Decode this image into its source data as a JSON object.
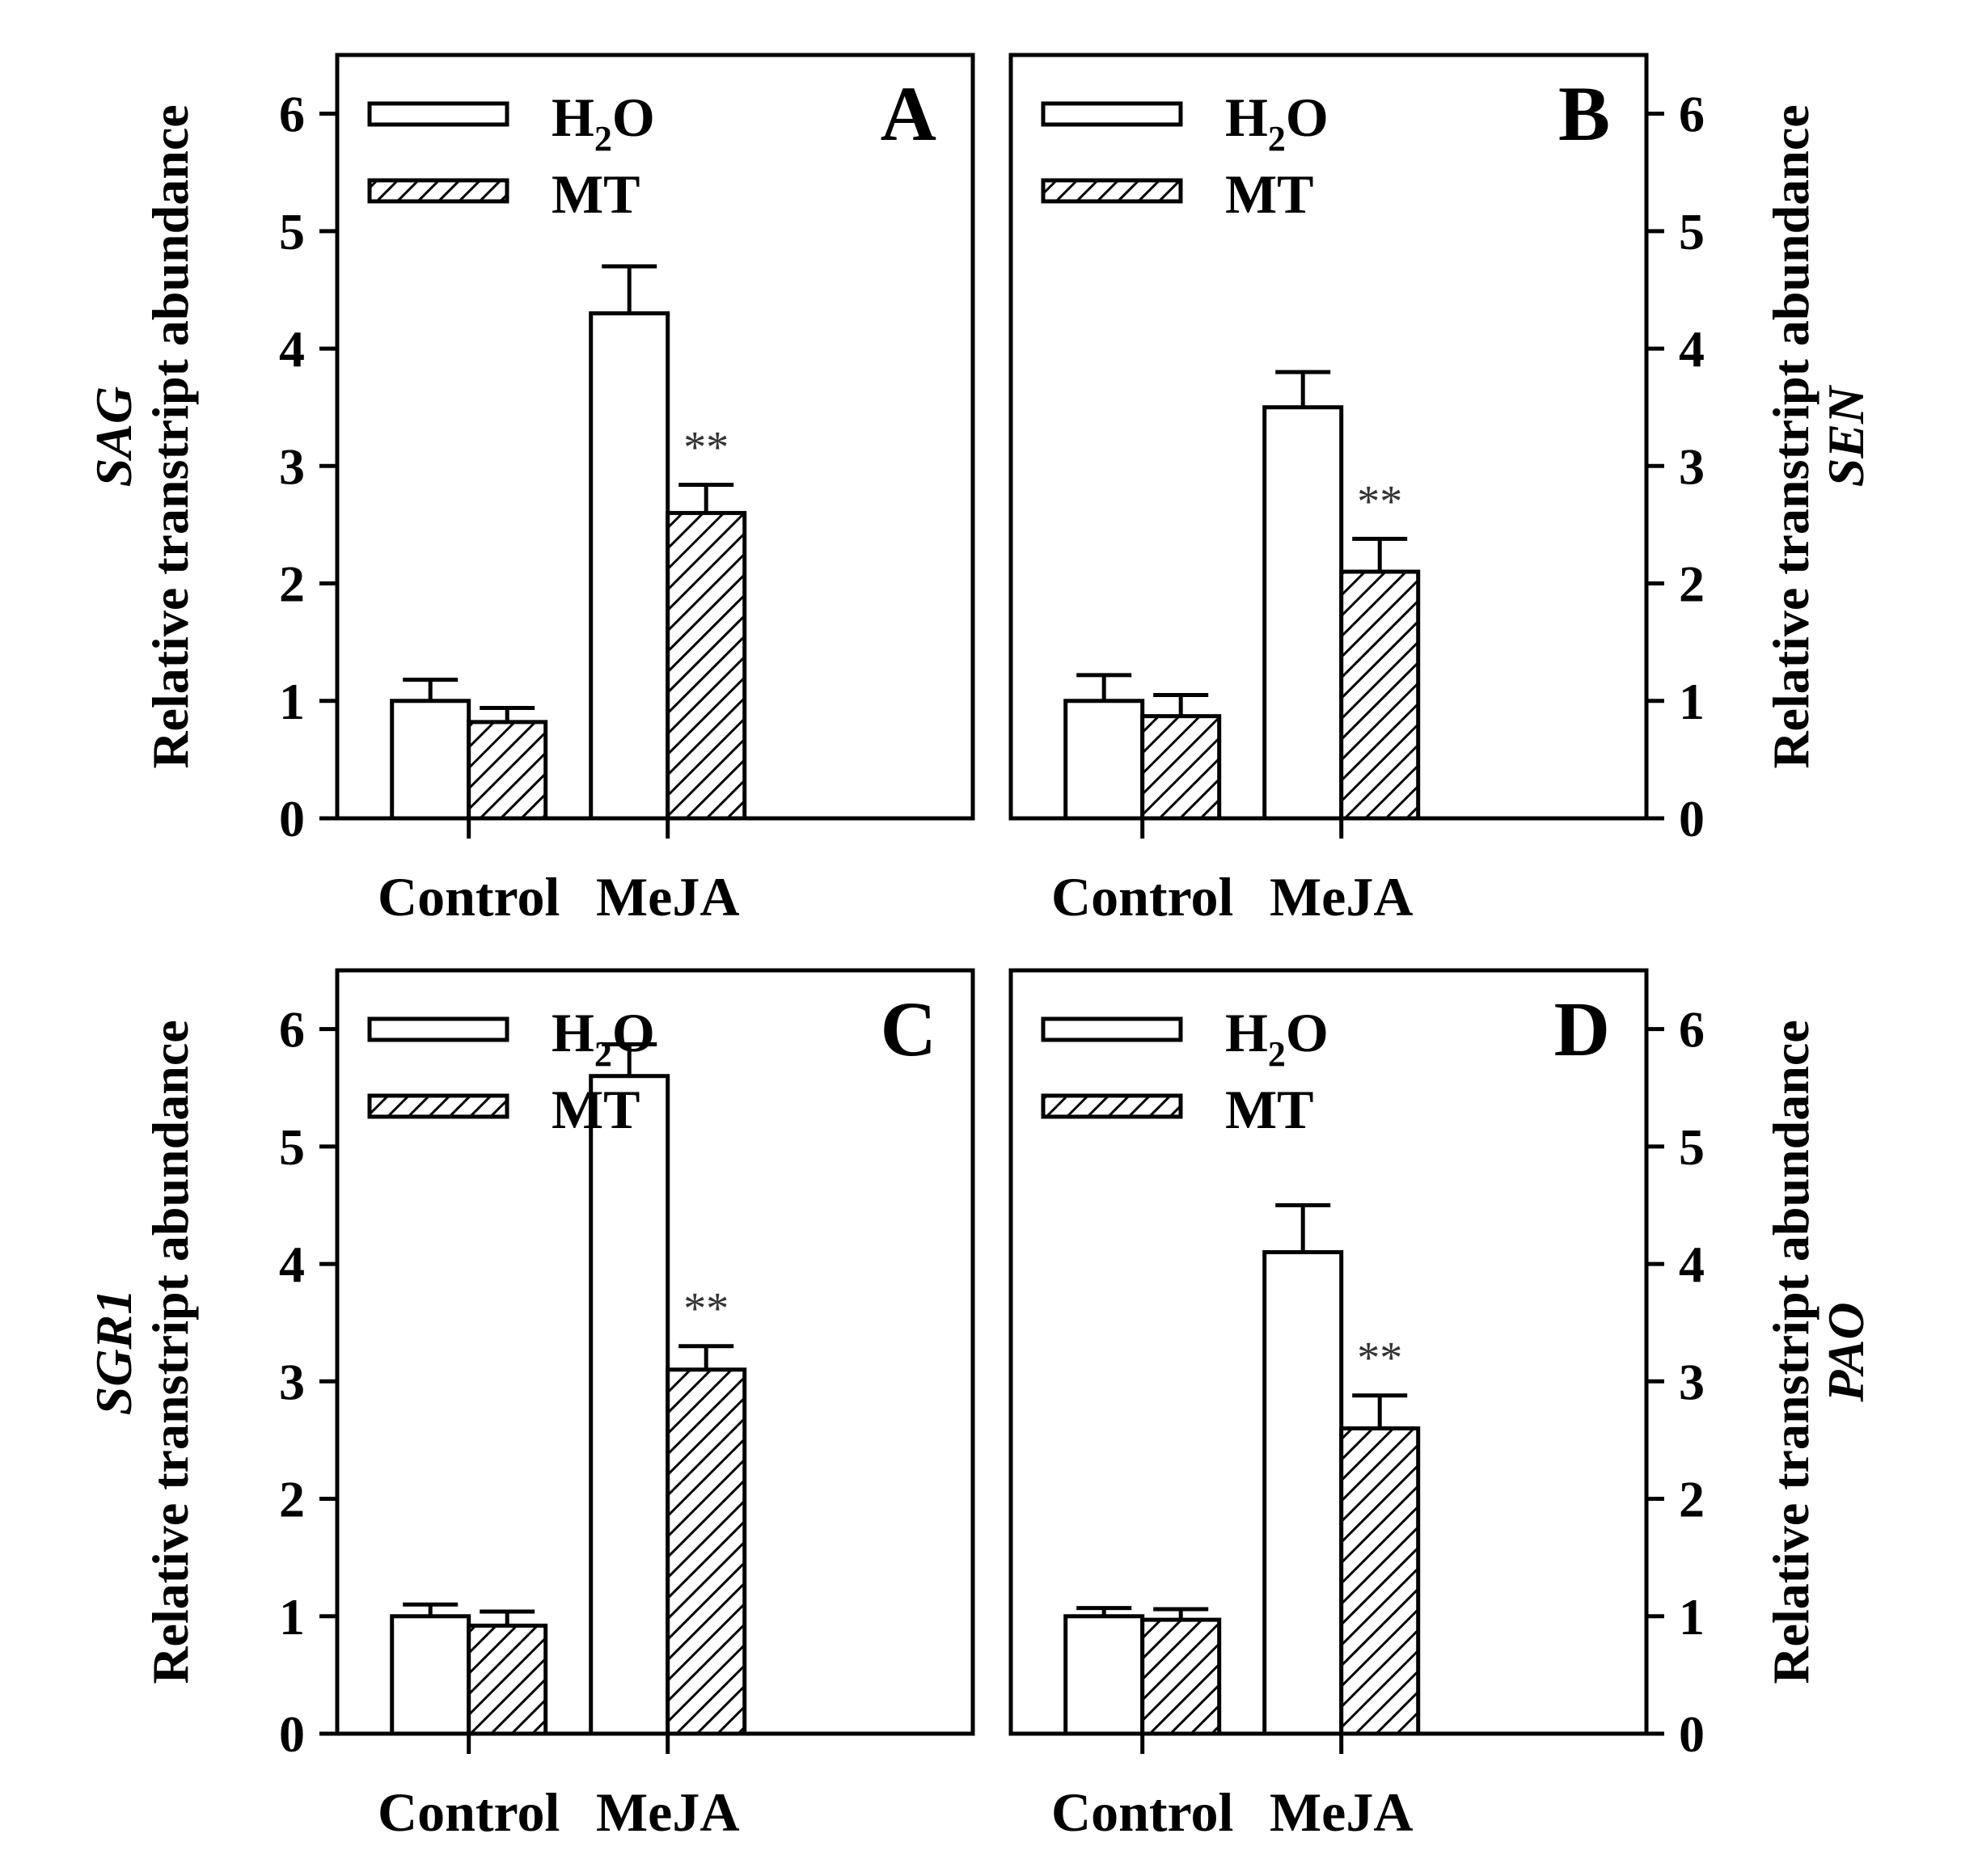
{
  "chart_data": [
    {
      "type": "bar",
      "panel": "A",
      "gene": "SAG",
      "ylabel": "Relative transtript abundance",
      "ylim": [
        0,
        6.5
      ],
      "yticks": [
        0,
        1,
        2,
        3,
        4,
        5,
        6
      ],
      "yaxis_side": "left",
      "categories": [
        "Control",
        "MeJA"
      ],
      "series": [
        {
          "name": "H2O",
          "values": [
            1.0,
            4.3
          ],
          "errors": [
            0.18,
            0.4
          ],
          "pattern": "open"
        },
        {
          "name": "MT",
          "values": [
            0.82,
            2.6
          ],
          "errors": [
            0.12,
            0.24
          ],
          "pattern": "hatched"
        }
      ],
      "annotations": [
        {
          "series": 1,
          "category": 1,
          "text": "**"
        }
      ],
      "legend": {
        "entries": [
          {
            "base": "H",
            "sub": "2",
            "tail": "O"
          },
          {
            "base": "MT",
            "sub": "",
            "tail": ""
          }
        ],
        "position": "top-left"
      }
    },
    {
      "type": "bar",
      "panel": "B",
      "gene": "SEN",
      "ylabel": "Relative transtript abundance",
      "ylim": [
        0,
        6.5
      ],
      "yticks": [
        0,
        1,
        2,
        3,
        4,
        5,
        6
      ],
      "yaxis_side": "right",
      "categories": [
        "Control",
        "MeJA"
      ],
      "series": [
        {
          "name": "H2O",
          "values": [
            1.0,
            3.5
          ],
          "errors": [
            0.22,
            0.3
          ],
          "pattern": "open"
        },
        {
          "name": "MT",
          "values": [
            0.87,
            2.1
          ],
          "errors": [
            0.18,
            0.28
          ],
          "pattern": "hatched"
        }
      ],
      "annotations": [
        {
          "series": 1,
          "category": 1,
          "text": "**"
        }
      ],
      "legend": {
        "entries": [
          {
            "base": "H",
            "sub": "2",
            "tail": "O"
          },
          {
            "base": "MT",
            "sub": "",
            "tail": ""
          }
        ],
        "position": "top-left"
      }
    },
    {
      "type": "bar",
      "panel": "C",
      "gene": "SGR1",
      "ylabel": "Relative transtript abundance",
      "ylim": [
        0,
        6.5
      ],
      "yticks": [
        0,
        1,
        2,
        3,
        4,
        5,
        6
      ],
      "yaxis_side": "left",
      "categories": [
        "Control",
        "MeJA"
      ],
      "series": [
        {
          "name": "H2O",
          "values": [
            1.0,
            5.6
          ],
          "errors": [
            0.1,
            0.27
          ],
          "pattern": "open"
        },
        {
          "name": "MT",
          "values": [
            0.92,
            3.1
          ],
          "errors": [
            0.12,
            0.2
          ],
          "pattern": "hatched"
        }
      ],
      "annotations": [
        {
          "series": 1,
          "category": 1,
          "text": "**"
        }
      ],
      "legend": {
        "entries": [
          {
            "base": "H",
            "sub": "2",
            "tail": "O"
          },
          {
            "base": "MT",
            "sub": "",
            "tail": ""
          }
        ],
        "position": "top-left"
      }
    },
    {
      "type": "bar",
      "panel": "D",
      "gene": "PAO",
      "ylabel": "Relative transtript abundance",
      "ylim": [
        0,
        6.5
      ],
      "yticks": [
        0,
        1,
        2,
        3,
        4,
        5,
        6
      ],
      "yaxis_side": "right",
      "categories": [
        "Control",
        "MeJA"
      ],
      "series": [
        {
          "name": "H2O",
          "values": [
            1.0,
            4.1
          ],
          "errors": [
            0.07,
            0.4
          ],
          "pattern": "open"
        },
        {
          "name": "MT",
          "values": [
            0.97,
            2.6
          ],
          "errors": [
            0.09,
            0.28
          ],
          "pattern": "hatched"
        }
      ],
      "annotations": [
        {
          "series": 1,
          "category": 1,
          "text": "**"
        }
      ],
      "legend": {
        "entries": [
          {
            "base": "H",
            "sub": "2",
            "tail": "O"
          },
          {
            "base": "MT",
            "sub": "",
            "tail": ""
          }
        ],
        "position": "top-left"
      }
    }
  ]
}
